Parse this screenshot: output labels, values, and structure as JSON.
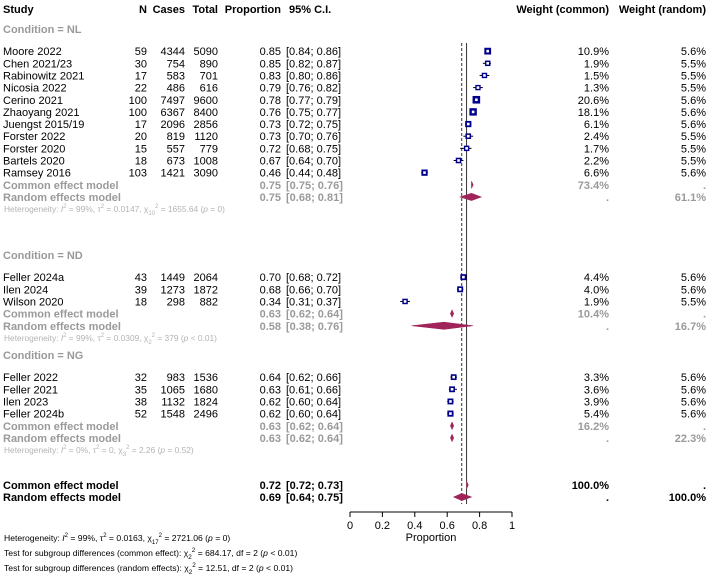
{
  "chart_data": {
    "type": "forest",
    "headers": {
      "study": "Study",
      "n": "N",
      "cases": "Cases",
      "total": "Total",
      "proportion": "Proportion",
      "ci": "95% C.I.",
      "weight_common": "Weight (common)",
      "weight_random": "Weight (random)"
    },
    "xlabel": "Proportion",
    "xlim": [
      0,
      1
    ],
    "xticks": [
      "0",
      "0.2",
      "0.4",
      "0.6",
      "0.8",
      "1"
    ],
    "reference_lines": {
      "common": 0.72,
      "random": 0.69
    },
    "colors": {
      "square": "#00008b",
      "diamond": "#a0245a",
      "subgroup_text": "#9a9a9a",
      "heterogeneity_text": "#b3b3b3"
    },
    "groups": [
      {
        "label": "Condition = NL",
        "studies": [
          {
            "study": "Moore 2022",
            "n": "59",
            "cases": "4344",
            "total": "5090",
            "prop": 0.85,
            "prop_text": "0.85",
            "lo": 0.84,
            "hi": 0.86,
            "ci_text": "[0.84; 0.86]",
            "w_common": "10.9%",
            "w_random": "5.6%"
          },
          {
            "study": "Chen 2021/23",
            "n": "30",
            "cases": "754",
            "total": "890",
            "prop": 0.85,
            "prop_text": "0.85",
            "lo": 0.82,
            "hi": 0.87,
            "ci_text": "[0.82; 0.87]",
            "w_common": "1.9%",
            "w_random": "5.5%"
          },
          {
            "study": "Rabinowitz 2021",
            "n": "17",
            "cases": "583",
            "total": "701",
            "prop": 0.83,
            "prop_text": "0.83",
            "lo": 0.8,
            "hi": 0.86,
            "ci_text": "[0.80; 0.86]",
            "w_common": "1.5%",
            "w_random": "5.5%"
          },
          {
            "study": "Nicosia 2022",
            "n": "22",
            "cases": "486",
            "total": "616",
            "prop": 0.79,
            "prop_text": "0.79",
            "lo": 0.76,
            "hi": 0.82,
            "ci_text": "[0.76; 0.82]",
            "w_common": "1.3%",
            "w_random": "5.5%"
          },
          {
            "study": "Cerino 2021",
            "n": "100",
            "cases": "7497",
            "total": "9600",
            "prop": 0.78,
            "prop_text": "0.78",
            "lo": 0.77,
            "hi": 0.79,
            "ci_text": "[0.77; 0.79]",
            "w_common": "20.6%",
            "w_random": "5.6%"
          },
          {
            "study": "Zhaoyang 2021",
            "n": "100",
            "cases": "6367",
            "total": "8400",
            "prop": 0.76,
            "prop_text": "0.76",
            "lo": 0.75,
            "hi": 0.77,
            "ci_text": "[0.75; 0.77]",
            "w_common": "18.1%",
            "w_random": "5.6%"
          },
          {
            "study": "Juengst 2015/19",
            "n": "17",
            "cases": "2096",
            "total": "2856",
            "prop": 0.73,
            "prop_text": "0.73",
            "lo": 0.72,
            "hi": 0.75,
            "ci_text": "[0.72; 0.75]",
            "w_common": "6.1%",
            "w_random": "5.6%"
          },
          {
            "study": "Forster 2022",
            "n": "20",
            "cases": "819",
            "total": "1120",
            "prop": 0.73,
            "prop_text": "0.73",
            "lo": 0.7,
            "hi": 0.76,
            "ci_text": "[0.70; 0.76]",
            "w_common": "2.4%",
            "w_random": "5.5%"
          },
          {
            "study": "Forster 2020",
            "n": "15",
            "cases": "557",
            "total": "779",
            "prop": 0.72,
            "prop_text": "0.72",
            "lo": 0.68,
            "hi": 0.75,
            "ci_text": "[0.68; 0.75]",
            "w_common": "1.7%",
            "w_random": "5.5%"
          },
          {
            "study": "Bartels 2020",
            "n": "18",
            "cases": "673",
            "total": "1008",
            "prop": 0.67,
            "prop_text": "0.67",
            "lo": 0.64,
            "hi": 0.7,
            "ci_text": "[0.64; 0.70]",
            "w_common": "2.2%",
            "w_random": "5.5%"
          },
          {
            "study": "Ramsey 2016",
            "n": "103",
            "cases": "1421",
            "total": "3090",
            "prop": 0.46,
            "prop_text": "0.46",
            "lo": 0.44,
            "hi": 0.48,
            "ci_text": "[0.44; 0.48]",
            "w_common": "6.6%",
            "w_random": "5.6%"
          }
        ],
        "common": {
          "label": "Common effect model",
          "prop": 0.75,
          "prop_text": "0.75",
          "lo": 0.75,
          "hi": 0.76,
          "ci_text": "[0.75; 0.76]",
          "w_common": "73.4%",
          "w_random": "."
        },
        "random": {
          "label": "Random effects model",
          "prop": 0.75,
          "prop_text": "0.75",
          "lo": 0.68,
          "hi": 0.81,
          "ci_text": "[0.68; 0.81]",
          "w_common": ".",
          "w_random": "61.1%"
        },
        "heterogeneity": {
          "i2": "99%",
          "tau2": "0.0147",
          "df": "10",
          "chi2": "1655.64",
          "p": "0"
        }
      },
      {
        "label": "Condition = ND",
        "studies": [
          {
            "study": "Feller 2024a",
            "n": "43",
            "cases": "1449",
            "total": "2064",
            "prop": 0.7,
            "prop_text": "0.70",
            "lo": 0.68,
            "hi": 0.72,
            "ci_text": "[0.68; 0.72]",
            "w_common": "4.4%",
            "w_random": "5.6%"
          },
          {
            "study": "Ilen 2024",
            "n": "39",
            "cases": "1273",
            "total": "1872",
            "prop": 0.68,
            "prop_text": "0.68",
            "lo": 0.66,
            "hi": 0.7,
            "ci_text": "[0.66; 0.70]",
            "w_common": "4.0%",
            "w_random": "5.6%"
          },
          {
            "study": "Wilson 2020",
            "n": "18",
            "cases": "298",
            "total": "882",
            "prop": 0.34,
            "prop_text": "0.34",
            "lo": 0.31,
            "hi": 0.37,
            "ci_text": "[0.31; 0.37]",
            "w_common": "1.9%",
            "w_random": "5.5%"
          }
        ],
        "common": {
          "label": "Common effect model",
          "prop": 0.63,
          "prop_text": "0.63",
          "lo": 0.62,
          "hi": 0.64,
          "ci_text": "[0.62; 0.64]",
          "w_common": "10.4%",
          "w_random": "."
        },
        "random": {
          "label": "Random effects model",
          "prop": 0.58,
          "prop_text": "0.58",
          "lo": 0.38,
          "hi": 0.76,
          "ci_text": "[0.38; 0.76]",
          "w_common": ".",
          "w_random": "16.7%"
        },
        "heterogeneity": {
          "i2": "99%",
          "tau2": "0.0309",
          "df": "2",
          "chi2": "379",
          "p": "< 0.01"
        }
      },
      {
        "label": "Condition = NG",
        "studies": [
          {
            "study": "Feller 2022",
            "n": "32",
            "cases": "983",
            "total": "1536",
            "prop": 0.64,
            "prop_text": "0.64",
            "lo": 0.62,
            "hi": 0.66,
            "ci_text": "[0.62; 0.66]",
            "w_common": "3.3%",
            "w_random": "5.6%"
          },
          {
            "study": "Feller 2021",
            "n": "35",
            "cases": "1065",
            "total": "1680",
            "prop": 0.63,
            "prop_text": "0.63",
            "lo": 0.61,
            "hi": 0.66,
            "ci_text": "[0.61; 0.66]",
            "w_common": "3.6%",
            "w_random": "5.6%"
          },
          {
            "study": "Ilen 2023",
            "n": "38",
            "cases": "1132",
            "total": "1824",
            "prop": 0.62,
            "prop_text": "0.62",
            "lo": 0.6,
            "hi": 0.64,
            "ci_text": "[0.60; 0.64]",
            "w_common": "3.9%",
            "w_random": "5.6%"
          },
          {
            "study": "Feller 2024b",
            "n": "52",
            "cases": "1548",
            "total": "2496",
            "prop": 0.62,
            "prop_text": "0.62",
            "lo": 0.6,
            "hi": 0.64,
            "ci_text": "[0.60; 0.64]",
            "w_common": "5.4%",
            "w_random": "5.6%"
          }
        ],
        "common": {
          "label": "Common effect model",
          "prop": 0.63,
          "prop_text": "0.63",
          "lo": 0.62,
          "hi": 0.64,
          "ci_text": "[0.62; 0.64]",
          "w_common": "16.2%",
          "w_random": "."
        },
        "random": {
          "label": "Random effects model",
          "prop": 0.63,
          "prop_text": "0.63",
          "lo": 0.62,
          "hi": 0.64,
          "ci_text": "[0.62; 0.64]",
          "w_common": ".",
          "w_random": "22.3%"
        },
        "heterogeneity": {
          "i2": "0%",
          "tau2": "0",
          "df": "3",
          "chi2": "2.26",
          "p": "0.52"
        }
      }
    ],
    "overall": {
      "common": {
        "label": "Common effect model",
        "prop": 0.72,
        "prop_text": "0.72",
        "lo": 0.72,
        "hi": 0.73,
        "ci_text": "[0.72; 0.73]",
        "w_common": "100.0%",
        "w_random": "."
      },
      "random": {
        "label": "Random effects model",
        "prop": 0.69,
        "prop_text": "0.69",
        "lo": 0.64,
        "hi": 0.75,
        "ci_text": "[0.64; 0.75]",
        "w_common": ".",
        "w_random": "100.0%"
      }
    },
    "footer": {
      "heterogeneity": {
        "i2": "99%",
        "tau2": "0.0163",
        "df": "17",
        "chi2": "2721.06",
        "p": "0"
      },
      "test_common": {
        "label": "Test for subgroup differences (common effect):",
        "chi2": "684.17",
        "df": "2",
        "p": "< 0.01"
      },
      "test_random": {
        "label": "Test for subgroup differences (random effects):",
        "chi2": "12.51",
        "df": "2",
        "p": "< 0.01"
      }
    }
  }
}
